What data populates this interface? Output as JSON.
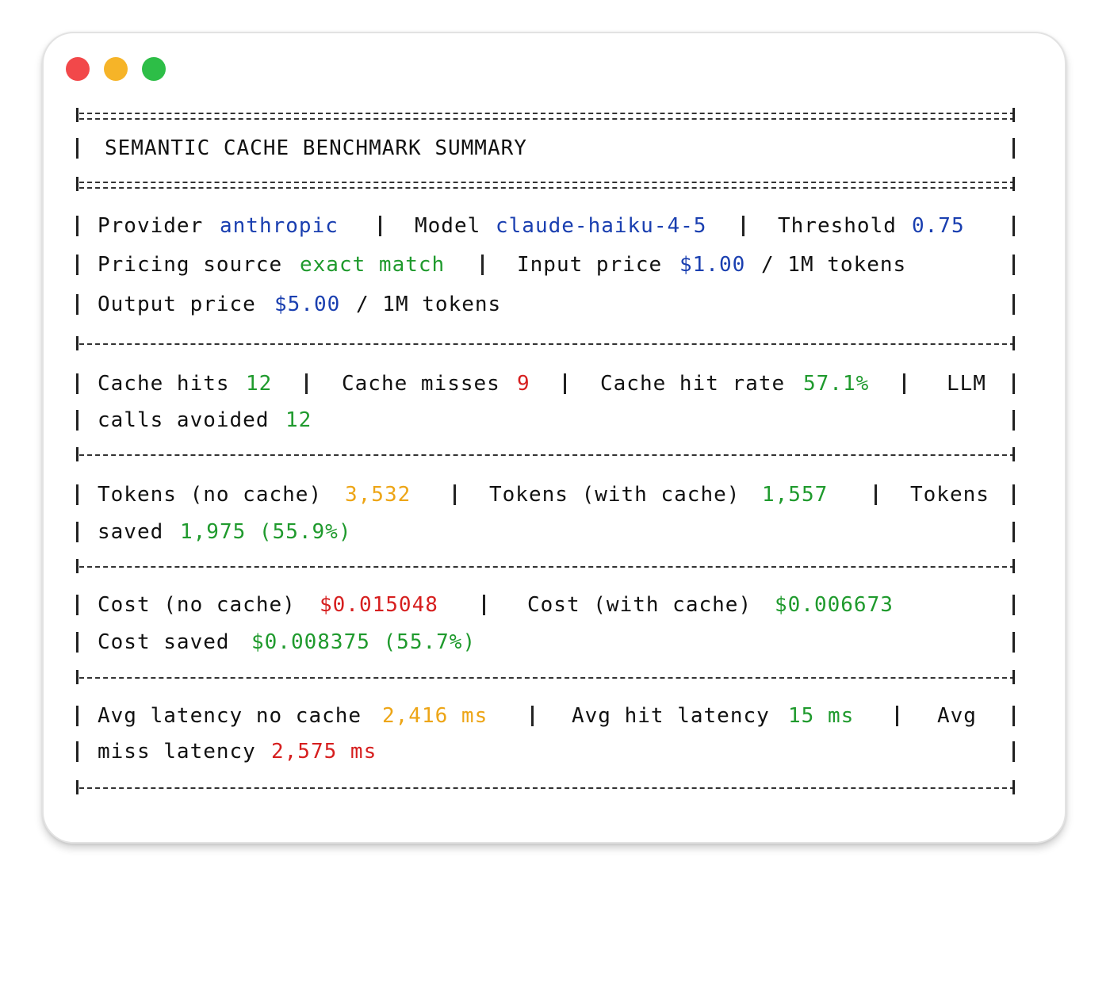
{
  "window": {
    "controls": [
      "close",
      "minimize",
      "zoom"
    ],
    "colors": {
      "close": "#f2484a",
      "minimize": "#f6b428",
      "zoom": "#2dbe47"
    }
  },
  "title": "SEMANTIC CACHE BENCHMARK SUMMARY",
  "config": {
    "provider_label": "Provider",
    "provider_value": "anthropic",
    "model_label": "Model",
    "model_value": "claude-haiku-4-5",
    "threshold_label": "Threshold",
    "threshold_value": "0.75",
    "pricing_label": "Pricing source",
    "pricing_value": "exact match",
    "input_price_label": "Input price",
    "input_price_value": "$1.00",
    "input_price_unit": "/ 1M tokens",
    "output_price_label": "Output price",
    "output_price_value": "$5.00",
    "output_price_unit": "/ 1M tokens"
  },
  "cache": {
    "hits_label": "Cache hits",
    "hits_value": "12",
    "misses_label": "Cache misses",
    "misses_value": "9",
    "hit_rate_label": "Cache hit rate",
    "hit_rate_value": "57.1%",
    "avoided_label_1": "LLM",
    "avoided_label_2": "calls avoided",
    "avoided_value": "12"
  },
  "tokens": {
    "no_cache_label": "Tokens (no cache)",
    "no_cache_value": "3,532",
    "with_cache_label": "Tokens (with cache)",
    "with_cache_value": "1,557",
    "saved_label_1": "Tokens",
    "saved_label_2": "saved",
    "saved_value": "1,975 (55.9%)"
  },
  "cost": {
    "no_cache_label": "Cost (no cache)",
    "no_cache_value": "$0.015048",
    "with_cache_label": "Cost (with cache)",
    "with_cache_value": "$0.006673",
    "saved_label": "Cost saved",
    "saved_value": "$0.008375 (55.7%)"
  },
  "latency": {
    "no_cache_label": "Avg latency no cache",
    "no_cache_value": "2,416 ms",
    "hit_label": "Avg hit latency",
    "hit_value": "15 ms",
    "miss_label_1": "Avg",
    "miss_label_2": "miss latency",
    "miss_value": "2,575 ms"
  },
  "colors": {
    "blue": "#1a3fb0",
    "green": "#1f9a2d",
    "orange": "#eda516",
    "red": "#d61f1f"
  }
}
